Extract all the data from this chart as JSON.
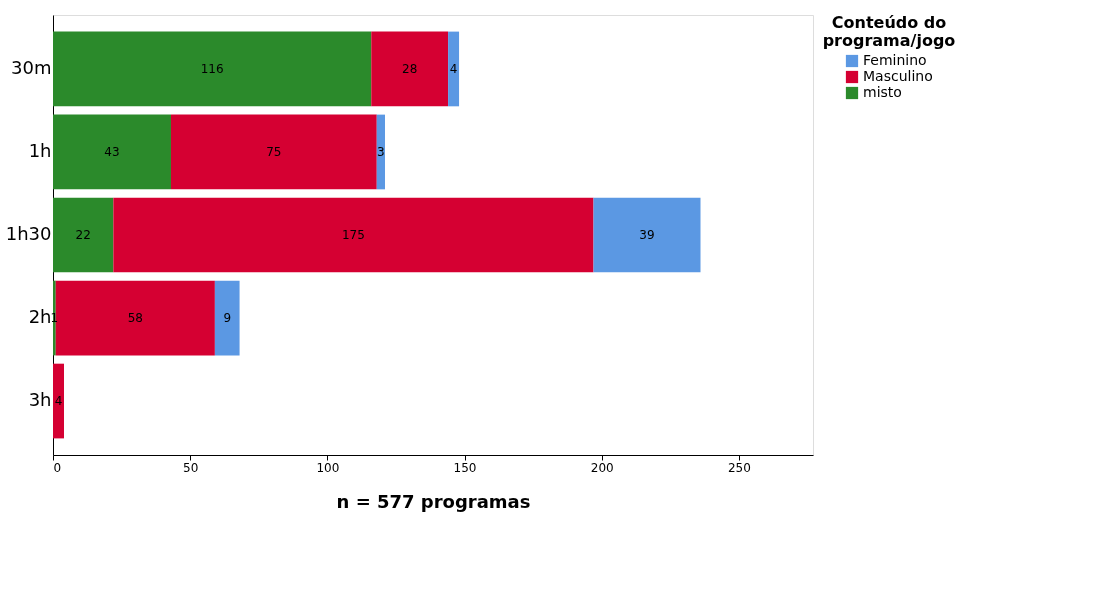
{
  "chart_data": {
    "type": "bar",
    "orientation": "horizontal",
    "stacked": true,
    "xlabel": "n = 577 programas",
    "legend_title": "Conteúdo do programa/jogo",
    "legend": "top right",
    "grid": false,
    "data_labels": true,
    "categories": [
      "30m",
      "1h",
      "1h30",
      "2h",
      "3h"
    ],
    "xlim": [
      0,
      277
    ],
    "xticks": [
      0,
      50,
      100,
      150,
      200,
      250
    ],
    "series": [
      {
        "name": "misto",
        "color": "#2b8a2b",
        "values": [
          116,
          43,
          22,
          1,
          null
        ]
      },
      {
        "name": "Masculino",
        "color": "#d50032",
        "values": [
          28,
          75,
          175,
          58,
          4
        ]
      },
      {
        "name": "Feminino",
        "color": "#5b98e3",
        "values": [
          4,
          3,
          39,
          9,
          null
        ]
      }
    ]
  }
}
